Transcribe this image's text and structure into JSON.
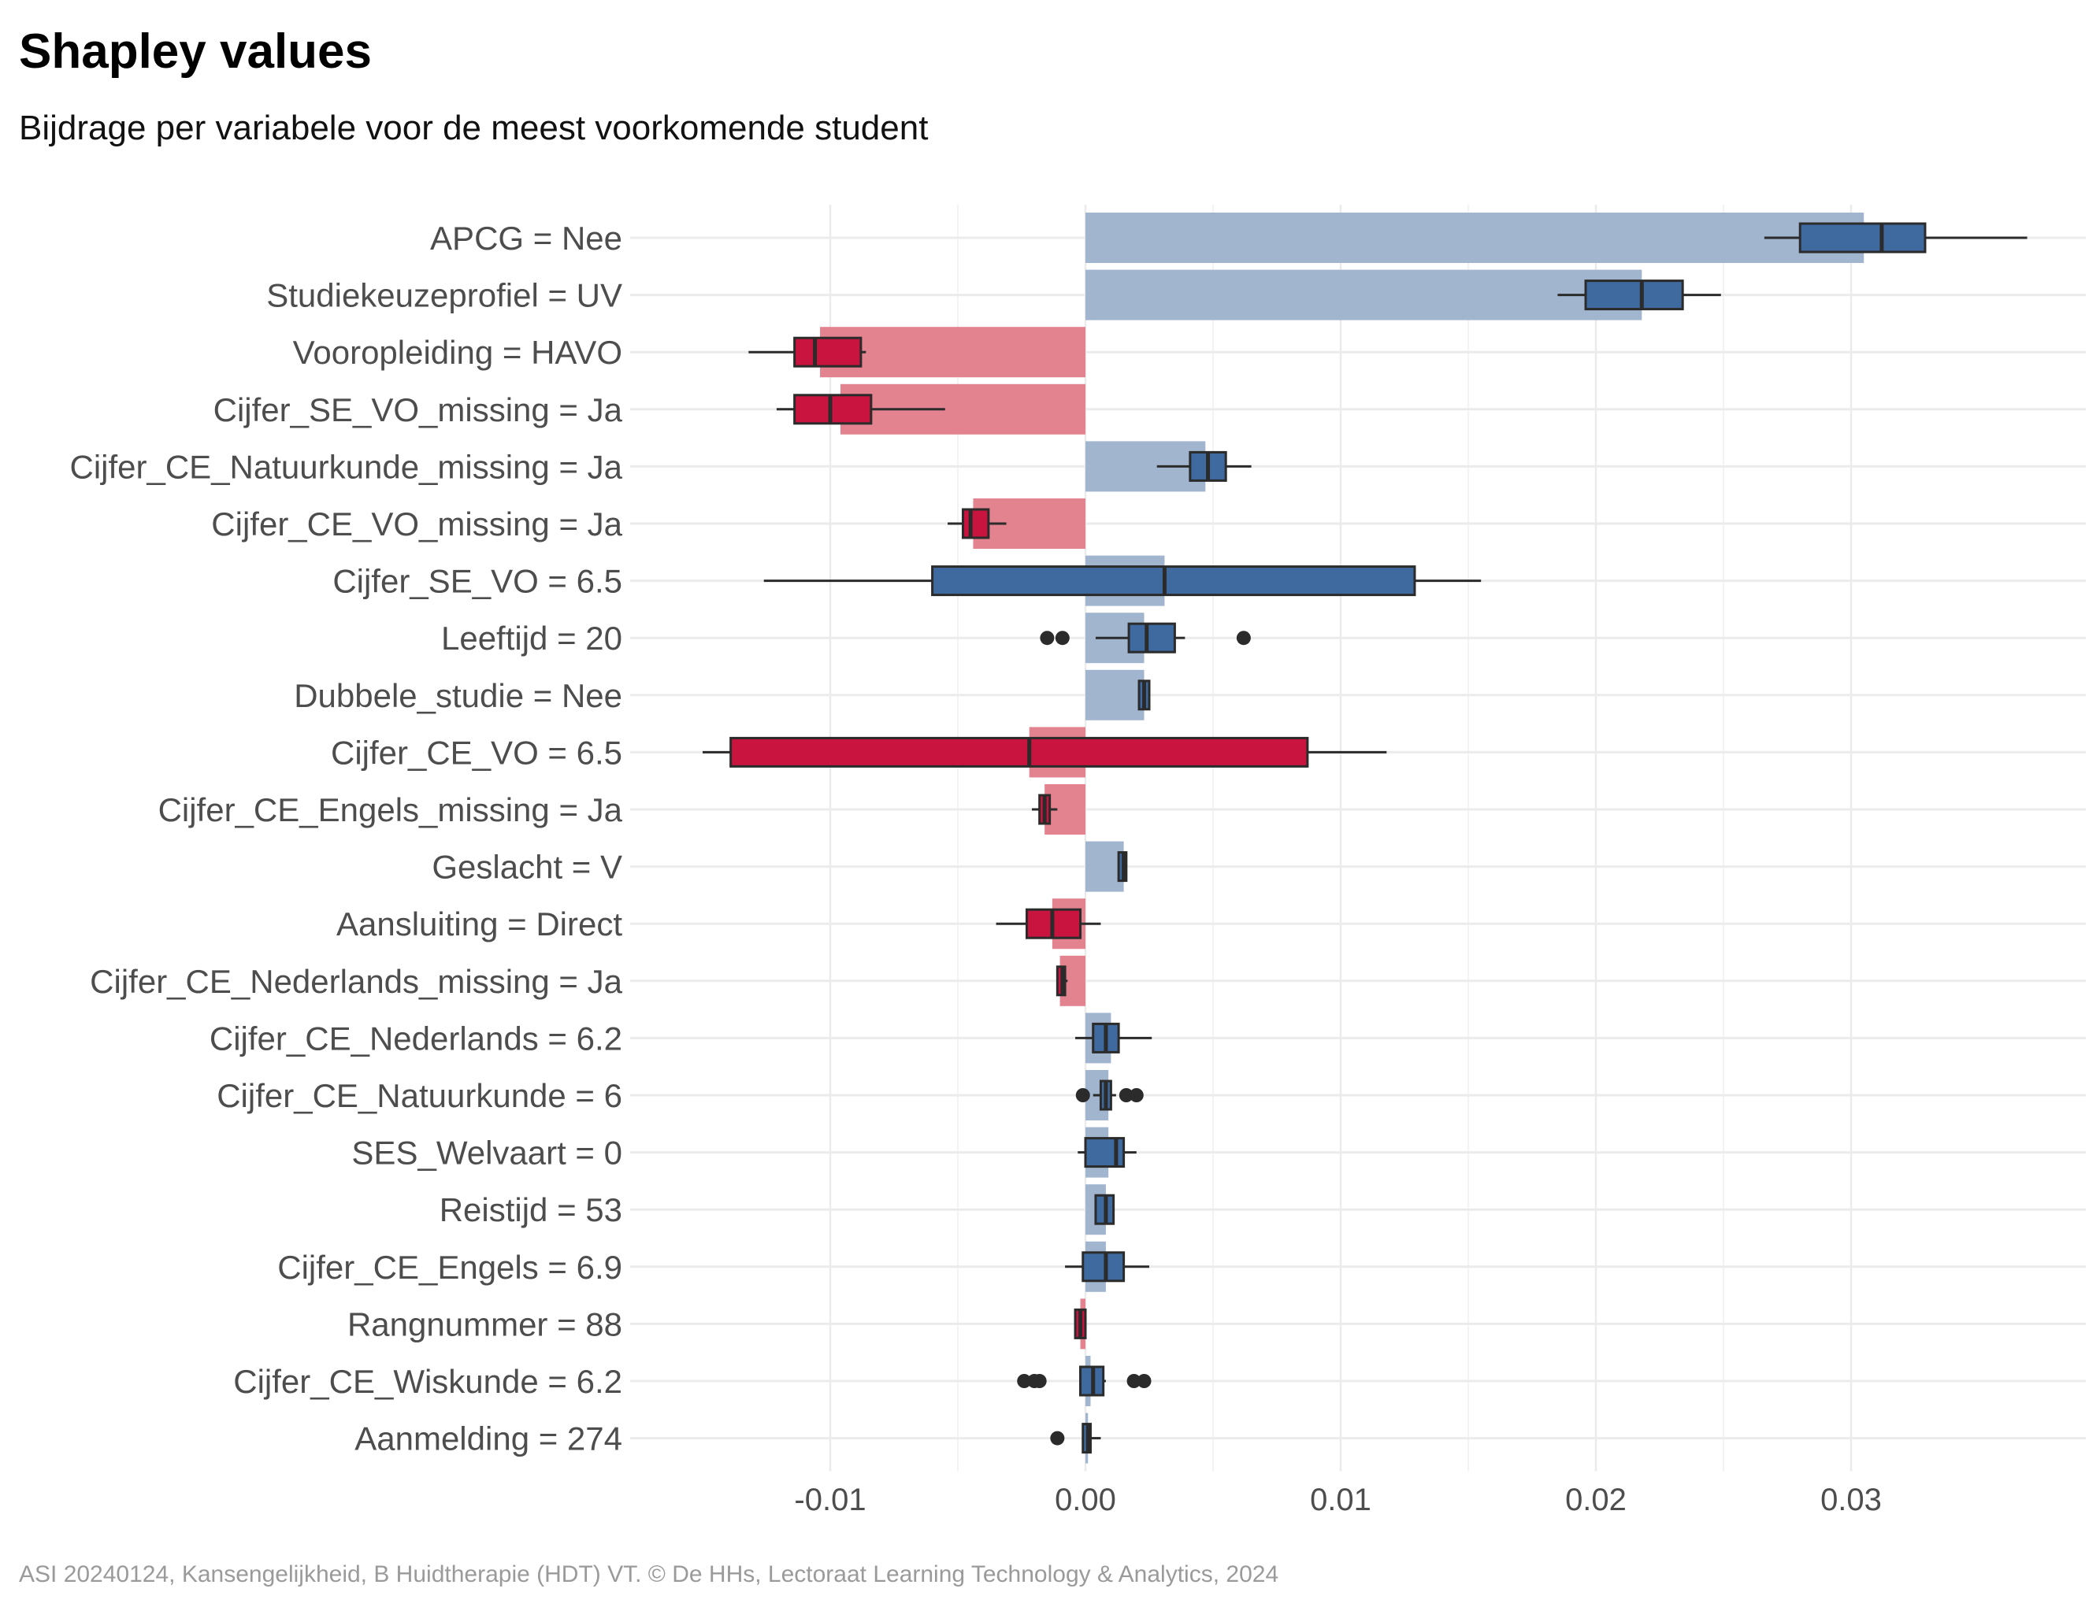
{
  "title": "Shapley values",
  "subtitle": "Bijdrage per variabele voor de meest voorkomende student",
  "caption": "ASI 20240124, Kansengelijkheid, B Huidtherapie (HDT) VT. © De HHs, Lectoraat Learning Technology & Analytics, 2024",
  "colors": {
    "positive_bar": "#a2b5cf",
    "negative_bar": "#e2838f",
    "positive_box": "#3e6a9f",
    "negative_box": "#c8143e",
    "box_stroke": "#2b2b2b",
    "grid": "#ebebeb",
    "axis_text": "#4d4d4d"
  },
  "chart_data": {
    "type": "bar",
    "title": "Shapley values",
    "subtitle": "Bijdrage per variabele voor de meest voorkomende student",
    "xlabel": "",
    "ylabel": "",
    "xlim": [
      -0.0175,
      0.0395
    ],
    "xticks": [
      -0.01,
      0.0,
      0.01,
      0.02,
      0.03
    ],
    "xtick_labels": [
      "-0.01",
      "0.00",
      "0.01",
      "0.02",
      "0.03"
    ],
    "grid": true,
    "legend": false,
    "series": [
      {
        "values": [
          0.0305,
          0.0218,
          -0.0104,
          -0.0096,
          0.0047,
          -0.0044,
          0.0031,
          0.0023,
          0.0023,
          -0.0022,
          -0.0016,
          0.0015,
          -0.0013,
          -0.001,
          0.001,
          0.0009,
          0.0009,
          0.0008,
          0.0008,
          -0.0002,
          0.0002,
          0.0001
        ]
      }
    ],
    "categories": [
      "APCG = Nee",
      "Studiekeuzeprofiel = UV",
      "Vooropleiding = HAVO",
      "Cijfer_SE_VO_missing = Ja",
      "Cijfer_CE_Natuurkunde_missing = Ja",
      "Cijfer_CE_VO_missing = Ja",
      "Cijfer_SE_VO = 6.5",
      "Leeftijd = 20",
      "Dubbele_studie = Nee",
      "Cijfer_CE_VO = 6.5",
      "Cijfer_CE_Engels_missing = Ja",
      "Geslacht = V",
      "Aansluiting = Direct",
      "Cijfer_CE_Nederlands_missing = Ja",
      "Cijfer_CE_Nederlands = 6.2",
      "Cijfer_CE_Natuurkunde = 6",
      "SES_Welvaart = 0",
      "Reistijd = 53",
      "Cijfer_CE_Engels = 6.9",
      "Rangnummer = 88",
      "Cijfer_CE_Wiskunde = 6.2",
      "Aanmelding = 274"
    ],
    "boxplots": [
      {
        "wlo": 0.0266,
        "q1": 0.028,
        "med": 0.0312,
        "q3": 0.0329,
        "whi": 0.0369,
        "out": []
      },
      {
        "wlo": 0.0185,
        "q1": 0.0196,
        "med": 0.0218,
        "q3": 0.0234,
        "whi": 0.0249,
        "out": []
      },
      {
        "wlo": -0.0132,
        "q1": -0.0114,
        "med": -0.0106,
        "q3": -0.0088,
        "whi": -0.0086,
        "out": []
      },
      {
        "wlo": -0.0121,
        "q1": -0.0114,
        "med": -0.01,
        "q3": -0.0084,
        "whi": -0.0055,
        "out": []
      },
      {
        "wlo": 0.0028,
        "q1": 0.0041,
        "med": 0.0048,
        "q3": 0.0055,
        "whi": 0.0065,
        "out": []
      },
      {
        "wlo": -0.0054,
        "q1": -0.0048,
        "med": -0.0045,
        "q3": -0.0038,
        "whi": -0.0031,
        "out": []
      },
      {
        "wlo": -0.0126,
        "q1": -0.006,
        "med": 0.0031,
        "q3": 0.0129,
        "whi": 0.0155,
        "out": []
      },
      {
        "wlo": 0.0004,
        "q1": 0.0017,
        "med": 0.0024,
        "q3": 0.0035,
        "whi": 0.0039,
        "out": [
          -0.0015,
          -0.0009,
          0.0062
        ]
      },
      {
        "wlo": 0.0021,
        "q1": 0.0021,
        "med": 0.0023,
        "q3": 0.0025,
        "whi": 0.0025,
        "out": []
      },
      {
        "wlo": -0.015,
        "q1": -0.0139,
        "med": -0.0022,
        "q3": 0.0087,
        "whi": 0.0118,
        "out": []
      },
      {
        "wlo": -0.0021,
        "q1": -0.0018,
        "med": -0.0016,
        "q3": -0.0014,
        "whi": -0.0011,
        "out": []
      },
      {
        "wlo": 0.0013,
        "q1": 0.0013,
        "med": 0.0015,
        "q3": 0.0016,
        "whi": 0.0016,
        "out": []
      },
      {
        "wlo": -0.0035,
        "q1": -0.0023,
        "med": -0.0013,
        "q3": -0.0002,
        "whi": 0.0006,
        "out": []
      },
      {
        "wlo": -0.0011,
        "q1": -0.0011,
        "med": -0.0009,
        "q3": -0.0008,
        "whi": -0.0007,
        "out": []
      },
      {
        "wlo": -0.0004,
        "q1": 0.0003,
        "med": 0.0008,
        "q3": 0.0013,
        "whi": 0.0026,
        "out": []
      },
      {
        "wlo": 0.0003,
        "q1": 0.0006,
        "med": 0.0008,
        "q3": 0.001,
        "whi": 0.0012,
        "out": [
          -0.0001,
          0.0016,
          0.002
        ]
      },
      {
        "wlo": -0.0003,
        "q1": 0.0,
        "med": 0.0012,
        "q3": 0.0015,
        "whi": 0.002,
        "out": []
      },
      {
        "wlo": 0.0004,
        "q1": 0.0004,
        "med": 0.0008,
        "q3": 0.0011,
        "whi": 0.0011,
        "out": []
      },
      {
        "wlo": -0.0008,
        "q1": -0.0001,
        "med": 0.0008,
        "q3": 0.0015,
        "whi": 0.0025,
        "out": []
      },
      {
        "wlo": -0.0004,
        "q1": -0.0004,
        "med": -0.0002,
        "q3": 0.0,
        "whi": 0.0,
        "out": []
      },
      {
        "wlo": -0.0002,
        "q1": -0.0002,
        "med": 0.0003,
        "q3": 0.0007,
        "whi": 0.0008,
        "out": [
          -0.0024,
          -0.002,
          -0.0018,
          0.0019,
          0.0023
        ]
      },
      {
        "wlo": -0.0001,
        "q1": -0.0001,
        "med": 0.0001,
        "q3": 0.0002,
        "whi": 0.0006,
        "out": [
          -0.0011
        ]
      }
    ]
  }
}
